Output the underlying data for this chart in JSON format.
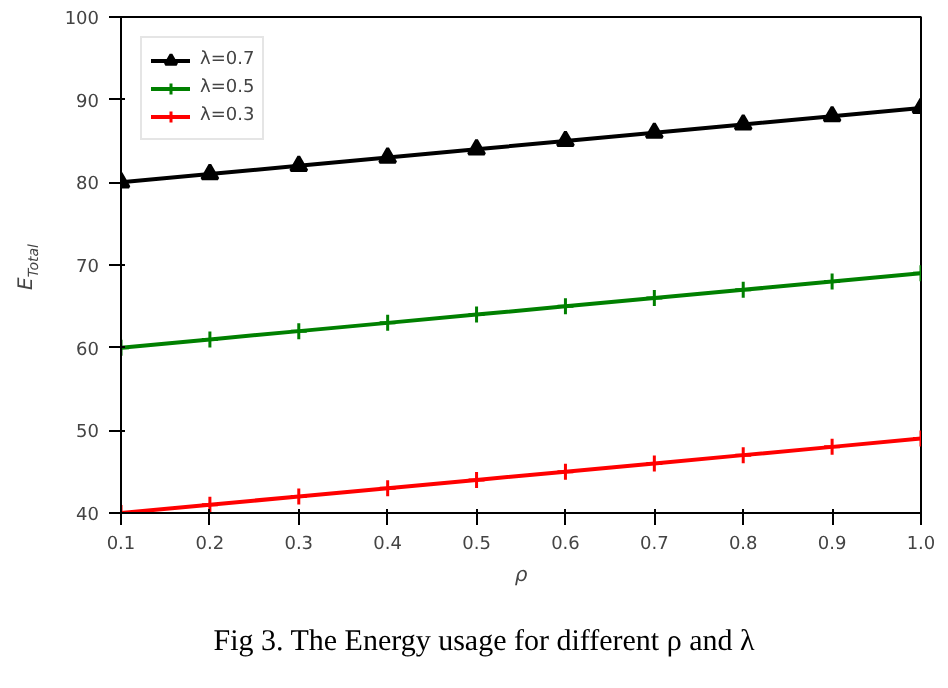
{
  "chart_data": {
    "type": "line",
    "xlabel": "ρ",
    "ylabel": "E$_{Total}$",
    "x": [
      0.1,
      0.2,
      0.3,
      0.4,
      0.5,
      0.6,
      0.7,
      0.8,
      0.9,
      1.0
    ],
    "series": [
      {
        "name": "λ=0.7",
        "color": "#000000",
        "marker": "triangle",
        "values": [
          80,
          81,
          82,
          83,
          84,
          85,
          86,
          87,
          88,
          89
        ]
      },
      {
        "name": "λ=0.5",
        "color": "#008000",
        "marker": "cross",
        "values": [
          60,
          61,
          62,
          63,
          64,
          65,
          66,
          67,
          68,
          69
        ]
      },
      {
        "name": "λ=0.3",
        "color": "#ff0000",
        "marker": "cross",
        "values": [
          40,
          41,
          42,
          43,
          44,
          45,
          46,
          47,
          48,
          49
        ]
      }
    ],
    "xlim": [
      0.1,
      1.0
    ],
    "xticks": [
      0.1,
      0.2,
      0.3,
      0.4,
      0.5,
      0.6,
      0.7,
      0.8,
      0.9,
      {
        "value": 1.0,
        "label": "1.0"
      }
    ],
    "ylim": [
      40,
      100
    ],
    "yticks": [
      40,
      50,
      60,
      70,
      80,
      90,
      100
    ],
    "grid": false,
    "legend": "top left",
    "line_style": "solid",
    "annotations": [
      "Fig 3. The Energy usage for different ρ and λ"
    ]
  }
}
